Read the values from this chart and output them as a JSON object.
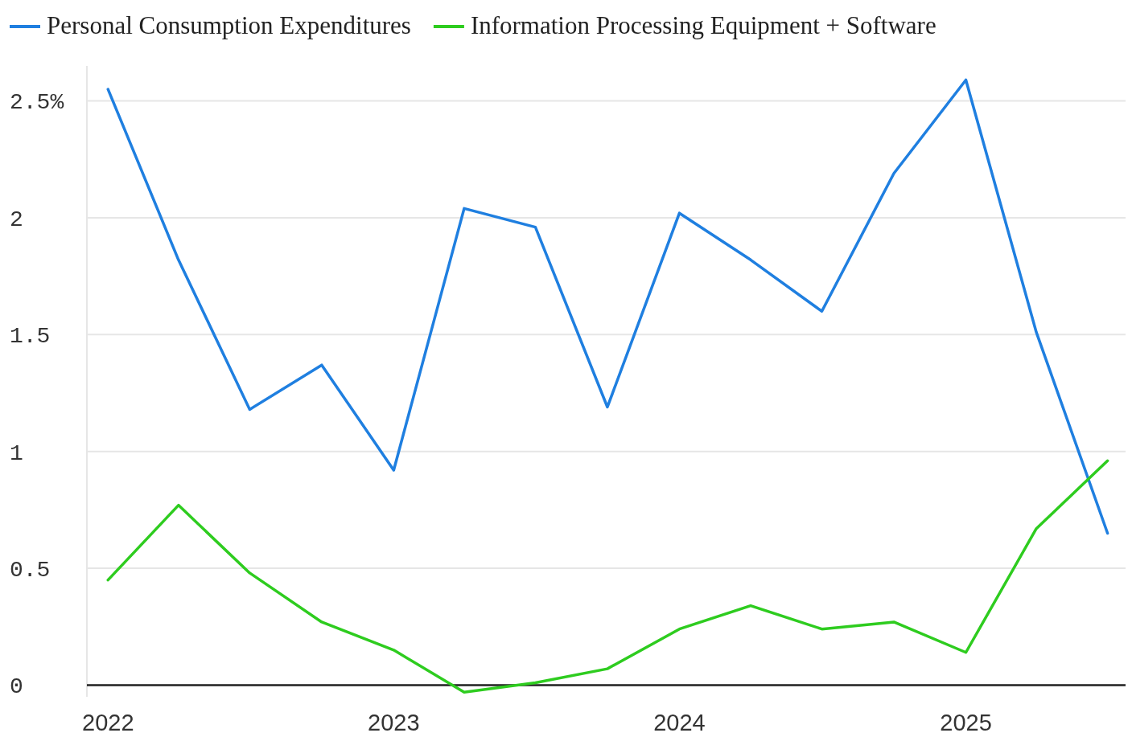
{
  "chart_data": {
    "type": "line",
    "x": [
      "2022-01-01",
      "2022-04-01",
      "2022-07-01",
      "2022-10-01",
      "2023-01-01",
      "2023-04-01",
      "2023-07-01",
      "2023-10-01",
      "2024-01-01",
      "2024-04-01",
      "2024-07-01",
      "2024-10-01",
      "2025-01-01",
      "2025-04-01",
      "2025-07-01"
    ],
    "series": [
      {
        "name": "Personal Consumption Expenditures",
        "color": "#1f7fe0",
        "values": [
          2.55,
          1.82,
          1.18,
          1.37,
          0.92,
          2.04,
          1.96,
          1.19,
          2.02,
          1.82,
          1.6,
          2.19,
          2.59,
          1.51,
          0.65
        ]
      },
      {
        "name": "Information Processing Equipment + Software",
        "color": "#2ecc1f",
        "values": [
          0.45,
          0.77,
          0.48,
          0.27,
          0.15,
          -0.03,
          0.01,
          0.07,
          0.24,
          0.34,
          0.24,
          0.27,
          0.14,
          0.67,
          0.96
        ]
      }
    ],
    "xlim": [
      "2021-12-05",
      "2025-07-24"
    ],
    "xticks": [
      {
        "value": "2022-01-01",
        "label": "2022"
      },
      {
        "value": "2023-01-01",
        "label": "2023"
      },
      {
        "value": "2024-01-01",
        "label": "2024"
      },
      {
        "value": "2025-01-01",
        "label": "2025"
      }
    ],
    "ylim": [
      -0.05,
      2.65
    ],
    "yticks": [
      0,
      0.5,
      1,
      1.5,
      2,
      {
        "value": 2.5,
        "label": "2.5%"
      }
    ],
    "grid": "y",
    "legend": "top left",
    "line_style": "solid",
    "marker": "none"
  }
}
